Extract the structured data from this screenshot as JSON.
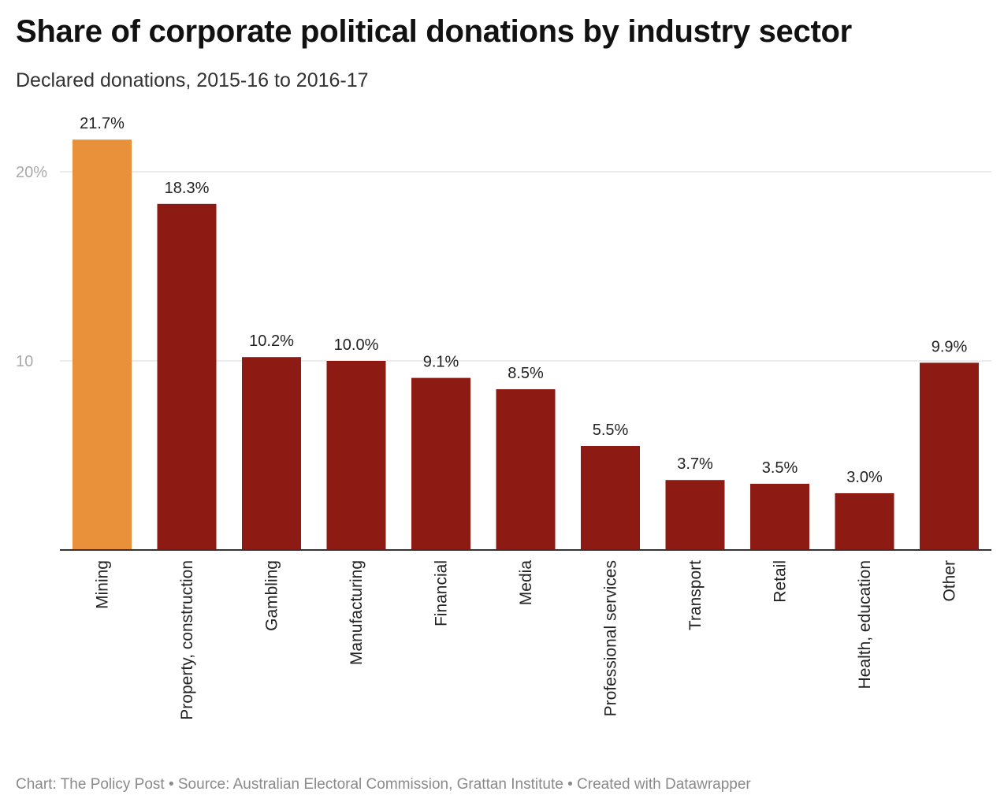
{
  "title": "Share of corporate political donations by industry sector",
  "subtitle": "Declared donations, 2015-16 to 2016-17",
  "footer": "Chart: The Policy Post • Source: Australian Electoral Commission, Grattan Institute • Created with Datawrapper",
  "chart_data": {
    "type": "bar",
    "categories": [
      "Mining",
      "Property, construction",
      "Gambling",
      "Manufacturing",
      "Financial",
      "Media",
      "Professional services",
      "Transport",
      "Retail",
      "Health, education",
      "Other"
    ],
    "values": [
      21.7,
      18.3,
      10.2,
      10.0,
      9.1,
      8.5,
      5.5,
      3.7,
      3.5,
      3.0,
      9.9
    ],
    "data_labels": [
      "21.7%",
      "18.3%",
      "10.2%",
      "10.0%",
      "9.1%",
      "8.5%",
      "5.5%",
      "3.7%",
      "3.5%",
      "3.0%",
      "9.9%"
    ],
    "ylim": [
      0,
      20
    ],
    "yticks": [
      {
        "value": 10,
        "label": "10"
      },
      {
        "value": 20,
        "label": "20%"
      }
    ],
    "grid": true,
    "highlight_category": "Mining",
    "colors": {
      "highlight": "#E8913A",
      "default": "#8E1B13",
      "grid": "#e6e6e6",
      "axis": "#333333",
      "tick_label": "#aaaaaa"
    }
  }
}
